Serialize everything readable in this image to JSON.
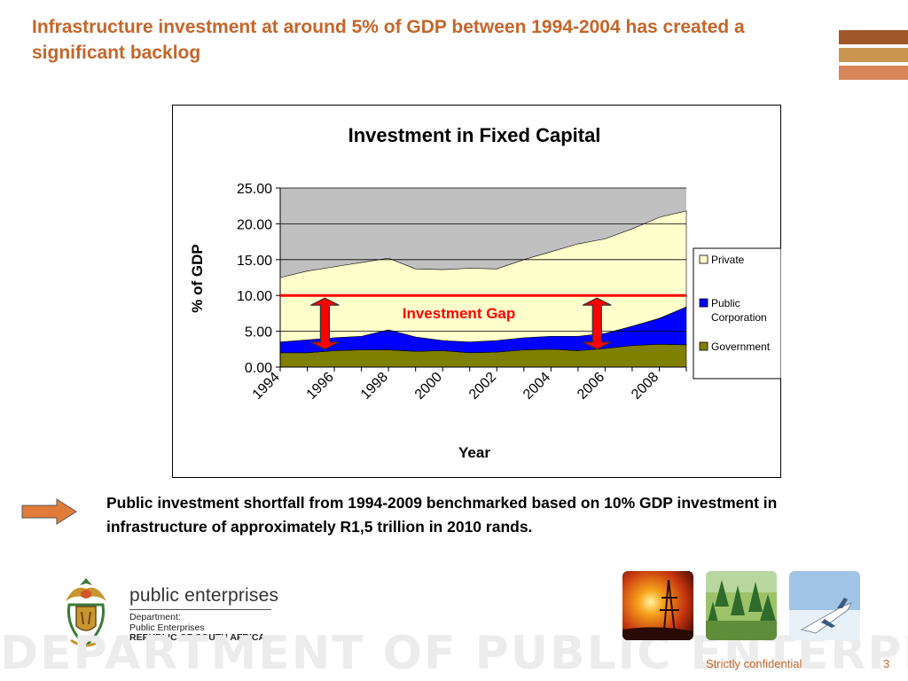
{
  "slide": {
    "title": "Infrastructure investment at around 5% of GDP between 1994-2004 has created a significant backlog",
    "callout": "Public investment shortfall from 1994-2009 benchmarked based on 10% GDP investment in infrastructure of approximately R1,5 trillion in 2010 rands.",
    "footer_confidential": "Strictly confidential",
    "page_number": "3"
  },
  "branding": {
    "org_name": "public enterprises",
    "sub_line1": "Department:",
    "sub_line2": "Public Enterprises",
    "sub_line3": "REPUBLIC OF SOUTH AFRICA",
    "watermark_text": "DEPARTMENT OF PUBLIC ENTERPRISES",
    "accent_color": "#c5652a",
    "deco_colors": [
      "#a0582a",
      "#c99650",
      "#d8855a"
    ]
  },
  "chart_data": {
    "type": "area",
    "stacked": true,
    "title": "Investment in Fixed Capital",
    "xlabel": "Year",
    "ylabel": "% of GDP",
    "ylim": [
      0,
      25
    ],
    "yticks": [
      "0.00",
      "5.00",
      "10.00",
      "15.00",
      "20.00",
      "25.00"
    ],
    "x": [
      1994,
      1995,
      1996,
      1997,
      1998,
      1999,
      2000,
      2001,
      2002,
      2003,
      2004,
      2005,
      2006,
      2007,
      2008,
      2009
    ],
    "xtick_labels": [
      "1994",
      "1996",
      "1998",
      "2000",
      "2002",
      "2004",
      "2006",
      "2008"
    ],
    "series": [
      {
        "name": "Government",
        "color": "#808000",
        "values": [
          2.0,
          2.0,
          2.3,
          2.4,
          2.4,
          2.2,
          2.3,
          2.0,
          2.1,
          2.4,
          2.5,
          2.3,
          2.6,
          3.0,
          3.2,
          3.1
        ]
      },
      {
        "name": "Public Corporation",
        "color": "#0000ff",
        "values": [
          1.5,
          1.8,
          1.8,
          1.9,
          2.8,
          2.0,
          1.4,
          1.5,
          1.6,
          1.7,
          1.8,
          2.0,
          2.1,
          2.7,
          3.6,
          5.3
        ]
      },
      {
        "name": "Private",
        "color": "#ffffcc",
        "values": [
          9.0,
          9.6,
          9.9,
          10.3,
          10.0,
          9.5,
          9.9,
          10.3,
          10.0,
          10.9,
          11.8,
          12.9,
          13.2,
          13.6,
          14.1,
          13.4
        ]
      }
    ],
    "legend_position": "right",
    "grid": true,
    "reference_line": {
      "value": 10,
      "color": "#ff0000"
    },
    "annotation": "Investment Gap",
    "plot_background": "#c0c0c0"
  }
}
